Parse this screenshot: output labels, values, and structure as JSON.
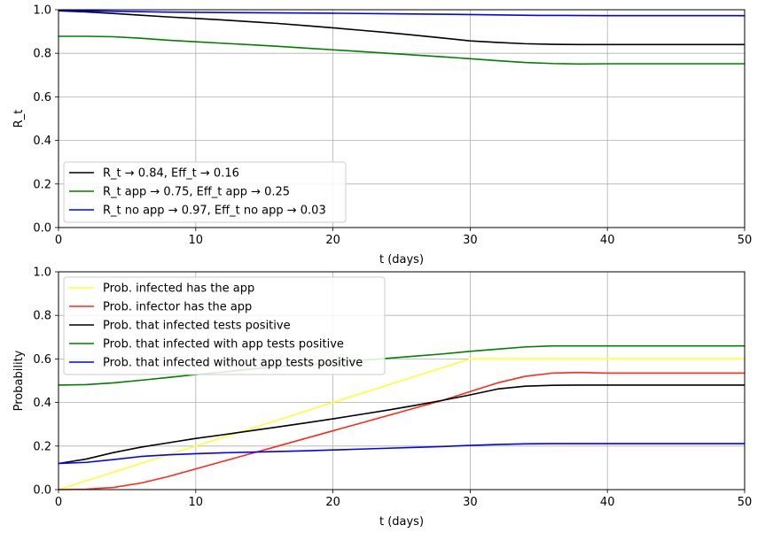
{
  "colors": {
    "black": "#000000",
    "green": "#008000",
    "blue": "#0000ff",
    "yellow": "#ffff33",
    "red": "#ff2a1a",
    "grid": "#b0b0b0"
  },
  "chart_data": [
    {
      "type": "line",
      "xlabel": "t (days)",
      "ylabel": "R_t",
      "xlim": [
        0,
        50
      ],
      "ylim": [
        0,
        1
      ],
      "xticks": [
        "0",
        "10",
        "20",
        "30",
        "40",
        "50"
      ],
      "yticks": [
        "0.0",
        "0.2",
        "0.4",
        "0.6",
        "0.8",
        "1.0"
      ],
      "grid": true,
      "legend_position": "lower-left",
      "series": [
        {
          "name": "R_t → 0.84, Eff_t → 0.16",
          "color": "#000000",
          "x": [
            0,
            2,
            4,
            6,
            8,
            10,
            12,
            14,
            16,
            18,
            20,
            22,
            24,
            26,
            28,
            30,
            32,
            34,
            36,
            38,
            40,
            45,
            50
          ],
          "y": [
            0.995,
            0.99,
            0.983,
            0.975,
            0.967,
            0.96,
            0.953,
            0.945,
            0.937,
            0.927,
            0.917,
            0.906,
            0.895,
            0.883,
            0.87,
            0.857,
            0.85,
            0.844,
            0.841,
            0.84,
            0.84,
            0.84,
            0.84
          ]
        },
        {
          "name": "R_t app → 0.75, Eff_t app → 0.25",
          "color": "#008000",
          "x": [
            0,
            2,
            4,
            6,
            8,
            10,
            12,
            14,
            16,
            18,
            20,
            22,
            24,
            26,
            28,
            30,
            32,
            34,
            36,
            38,
            40,
            45,
            50
          ],
          "y": [
            0.878,
            0.878,
            0.876,
            0.869,
            0.86,
            0.853,
            0.846,
            0.839,
            0.832,
            0.824,
            0.816,
            0.808,
            0.8,
            0.792,
            0.784,
            0.775,
            0.766,
            0.758,
            0.753,
            0.751,
            0.752,
            0.752,
            0.752
          ]
        },
        {
          "name": "R_t no app → 0.97, Eff_t no app → 0.03",
          "color": "#0000ff",
          "x": [
            0,
            2,
            4,
            6,
            8,
            10,
            15,
            20,
            25,
            30,
            35,
            40,
            45,
            50
          ],
          "y": [
            0.997,
            0.995,
            0.993,
            0.991,
            0.989,
            0.988,
            0.986,
            0.984,
            0.981,
            0.978,
            0.974,
            0.973,
            0.973,
            0.973
          ]
        }
      ]
    },
    {
      "type": "line",
      "xlabel": "t (days)",
      "ylabel": "Probability",
      "xlim": [
        0,
        50
      ],
      "ylim": [
        0,
        1
      ],
      "xticks": [
        "0",
        "10",
        "20",
        "30",
        "40",
        "50"
      ],
      "yticks": [
        "0.0",
        "0.2",
        "0.4",
        "0.6",
        "0.8",
        "1.0"
      ],
      "grid": true,
      "legend_position": "upper-left",
      "series": [
        {
          "name": "Prob. infected has the app",
          "color": "#ffff33",
          "x": [
            0,
            5,
            10,
            15,
            20,
            25,
            30,
            35,
            40,
            45,
            50
          ],
          "y": [
            0.0,
            0.1,
            0.2,
            0.3,
            0.4,
            0.5,
            0.6,
            0.6,
            0.6,
            0.6,
            0.6
          ]
        },
        {
          "name": "Prob. infector has the app",
          "color": "#ff2a1a",
          "x": [
            0,
            2,
            4,
            6,
            8,
            10,
            12,
            14,
            16,
            18,
            20,
            22,
            24,
            26,
            28,
            30,
            32,
            34,
            36,
            38,
            40,
            45,
            50
          ],
          "y": [
            0.0,
            0.002,
            0.01,
            0.03,
            0.06,
            0.095,
            0.13,
            0.165,
            0.2,
            0.235,
            0.27,
            0.305,
            0.34,
            0.375,
            0.41,
            0.45,
            0.49,
            0.52,
            0.535,
            0.538,
            0.535,
            0.535,
            0.535
          ]
        },
        {
          "name": "Prob. that infected tests positive",
          "color": "#000000",
          "x": [
            0,
            2,
            4,
            6,
            8,
            10,
            12,
            14,
            16,
            18,
            20,
            22,
            24,
            26,
            28,
            30,
            32,
            34,
            36,
            38,
            40,
            45,
            50
          ],
          "y": [
            0.12,
            0.14,
            0.17,
            0.195,
            0.215,
            0.235,
            0.252,
            0.27,
            0.288,
            0.306,
            0.325,
            0.345,
            0.365,
            0.387,
            0.41,
            0.435,
            0.462,
            0.475,
            0.479,
            0.48,
            0.48,
            0.48,
            0.48
          ]
        },
        {
          "name": "Prob. that infected with app tests positive",
          "color": "#008000",
          "x": [
            0,
            2,
            4,
            6,
            8,
            10,
            12,
            14,
            16,
            18,
            20,
            22,
            24,
            26,
            28,
            30,
            32,
            34,
            36,
            38,
            40,
            45,
            50
          ],
          "y": [
            0.48,
            0.482,
            0.49,
            0.502,
            0.515,
            0.528,
            0.54,
            0.553,
            0.565,
            0.575,
            0.583,
            0.593,
            0.603,
            0.613,
            0.623,
            0.635,
            0.645,
            0.655,
            0.66,
            0.66,
            0.66,
            0.66,
            0.66
          ]
        },
        {
          "name": "Prob. that infected without app tests positive",
          "color": "#0000ff",
          "x": [
            0,
            2,
            4,
            6,
            8,
            10,
            12,
            14,
            16,
            18,
            20,
            22,
            24,
            26,
            28,
            30,
            32,
            34,
            36,
            38,
            40,
            45,
            50
          ],
          "y": [
            0.12,
            0.125,
            0.138,
            0.152,
            0.16,
            0.165,
            0.169,
            0.172,
            0.175,
            0.178,
            0.182,
            0.186,
            0.19,
            0.194,
            0.198,
            0.203,
            0.207,
            0.21,
            0.211,
            0.211,
            0.211,
            0.211,
            0.211
          ]
        }
      ]
    }
  ]
}
